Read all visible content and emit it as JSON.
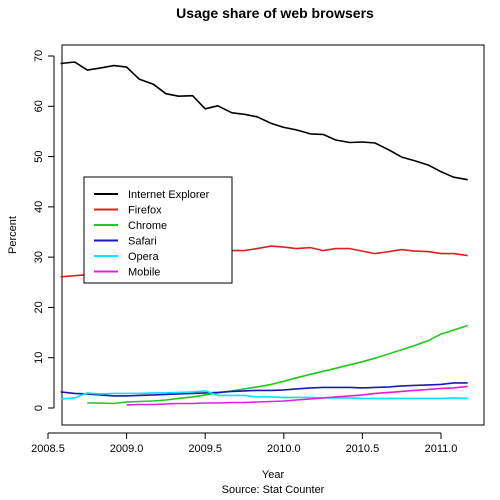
{
  "chart_data": {
    "type": "line",
    "title": "Usage share of web browsers",
    "xlabel": "Year",
    "caption": "Source: Stat Counter",
    "ylabel": "Percent",
    "xlim": [
      2008.5,
      2011.2
    ],
    "ylim": [
      0,
      72
    ],
    "x_ticks": [
      2008.5,
      2009.0,
      2009.5,
      2010.0,
      2010.5,
      2011.0
    ],
    "x_tick_labels": [
      "2008.5",
      "2009.0",
      "2009.5",
      "2010.0",
      "2010.5",
      "2011.0"
    ],
    "y_ticks": [
      0,
      10,
      20,
      30,
      40,
      50,
      60,
      70
    ],
    "y_tick_labels": [
      "0",
      "10",
      "20",
      "30",
      "40",
      "50",
      "60",
      "70"
    ],
    "legend_position": "left",
    "series": [
      {
        "name": "Internet Explorer",
        "color": "#000000",
        "x": [
          2008.58,
          2008.67,
          2008.75,
          2008.83,
          2008.92,
          2009.0,
          2009.08,
          2009.17,
          2009.25,
          2009.33,
          2009.42,
          2009.5,
          2009.58,
          2009.67,
          2009.75,
          2009.83,
          2009.92,
          2010.0,
          2010.08,
          2010.17,
          2010.25,
          2010.33,
          2010.42,
          2010.5,
          2010.58,
          2010.67,
          2010.75,
          2010.83,
          2010.92,
          2011.0,
          2011.08,
          2011.17
        ],
        "values": [
          68.5,
          68.8,
          67.2,
          67.6,
          68.1,
          67.8,
          65.4,
          64.4,
          62.5,
          62.0,
          62.1,
          59.5,
          60.1,
          58.7,
          58.4,
          57.9,
          56.6,
          55.8,
          55.3,
          54.5,
          54.4,
          53.3,
          52.8,
          52.9,
          52.7,
          51.3,
          49.9,
          49.2,
          48.3,
          47.0,
          45.9,
          45.4
        ]
      },
      {
        "name": "Firefox",
        "color": "#df2020",
        "x": [
          2008.58,
          2008.67,
          2008.75,
          2008.83,
          2008.92,
          2009.0,
          2009.08,
          2009.17,
          2009.25,
          2009.33,
          2009.42,
          2009.5,
          2009.58,
          2009.67,
          2009.75,
          2009.83,
          2009.92,
          2010.0,
          2010.08,
          2010.17,
          2010.25,
          2010.33,
          2010.42,
          2010.5,
          2010.58,
          2010.67,
          2010.75,
          2010.83,
          2010.92,
          2011.0,
          2011.08,
          2011.17
        ],
        "values": [
          26.1,
          26.3,
          26.5,
          27.0,
          27.6,
          28.0,
          28.5,
          29.0,
          29.3,
          29.7,
          30.0,
          30.2,
          30.5,
          31.3,
          31.3,
          31.7,
          32.2,
          32.0,
          31.7,
          31.9,
          31.3,
          31.7,
          31.7,
          31.2,
          30.7,
          31.1,
          31.5,
          31.2,
          31.1,
          30.7,
          30.7,
          30.3
        ]
      },
      {
        "name": "Chrome",
        "color": "#1ec81e",
        "x": [
          2008.75,
          2008.83,
          2008.92,
          2009.0,
          2009.08,
          2009.17,
          2009.25,
          2009.33,
          2009.42,
          2009.5,
          2009.58,
          2009.67,
          2009.75,
          2009.83,
          2009.92,
          2010.0,
          2010.08,
          2010.17,
          2010.25,
          2010.33,
          2010.42,
          2010.5,
          2010.58,
          2010.67,
          2010.75,
          2010.83,
          2010.92,
          2011.0,
          2011.08,
          2011.17
        ],
        "values": [
          1.0,
          1.0,
          0.9,
          1.2,
          1.3,
          1.4,
          1.6,
          1.9,
          2.2,
          2.6,
          3.0,
          3.4,
          3.8,
          4.2,
          4.7,
          5.3,
          6.0,
          6.7,
          7.3,
          7.9,
          8.6,
          9.2,
          9.9,
          10.8,
          11.6,
          12.4,
          13.4,
          14.7,
          15.5,
          16.4
        ]
      },
      {
        "name": "Safari",
        "color": "#1a1ab4",
        "x": [
          2008.58,
          2008.67,
          2008.75,
          2008.83,
          2008.92,
          2009.0,
          2009.08,
          2009.17,
          2009.25,
          2009.33,
          2009.42,
          2009.5,
          2009.58,
          2009.67,
          2009.75,
          2009.83,
          2009.92,
          2010.0,
          2010.08,
          2010.17,
          2010.25,
          2010.33,
          2010.42,
          2010.5,
          2010.58,
          2010.67,
          2010.75,
          2010.83,
          2010.92,
          2011.0,
          2011.08,
          2011.17
        ],
        "values": [
          3.2,
          2.9,
          2.8,
          2.6,
          2.4,
          2.4,
          2.5,
          2.6,
          2.7,
          2.8,
          2.9,
          3.0,
          3.1,
          3.3,
          3.4,
          3.5,
          3.5,
          3.6,
          3.8,
          4.0,
          4.1,
          4.1,
          4.1,
          4.0,
          4.1,
          4.2,
          4.4,
          4.5,
          4.6,
          4.7,
          5.0,
          5.0
        ]
      },
      {
        "name": "Opera",
        "color": "#00e5ff",
        "x": [
          2008.58,
          2008.67,
          2008.75,
          2008.83,
          2008.92,
          2009.0,
          2009.08,
          2009.17,
          2009.25,
          2009.33,
          2009.42,
          2009.5,
          2009.58,
          2009.67,
          2009.75,
          2009.83,
          2009.92,
          2010.0,
          2010.08,
          2010.17,
          2010.25,
          2010.33,
          2010.42,
          2010.5,
          2010.58,
          2010.67,
          2010.75,
          2010.83,
          2010.92,
          2011.0,
          2011.08,
          2011.17
        ],
        "values": [
          1.8,
          2.0,
          3.0,
          2.8,
          2.9,
          2.9,
          2.9,
          3.0,
          3.0,
          3.1,
          3.2,
          3.4,
          2.5,
          2.5,
          2.5,
          2.2,
          2.2,
          2.1,
          2.1,
          2.1,
          2.0,
          2.0,
          2.0,
          1.9,
          1.9,
          1.9,
          1.9,
          1.9,
          1.9,
          1.9,
          2.0,
          1.9
        ]
      },
      {
        "name": "Mobile",
        "color": "#e020e0",
        "x": [
          2009.0,
          2009.08,
          2009.17,
          2009.25,
          2009.33,
          2009.42,
          2009.5,
          2009.58,
          2009.67,
          2009.75,
          2009.83,
          2009.92,
          2010.0,
          2010.08,
          2010.17,
          2010.25,
          2010.33,
          2010.42,
          2010.5,
          2010.58,
          2010.67,
          2010.75,
          2010.83,
          2010.92,
          2011.0,
          2011.08,
          2011.17
        ],
        "values": [
          0.6,
          0.7,
          0.7,
          0.8,
          0.9,
          0.9,
          1.0,
          1.0,
          1.1,
          1.1,
          1.2,
          1.3,
          1.4,
          1.6,
          1.8,
          2.0,
          2.2,
          2.4,
          2.6,
          2.9,
          3.1,
          3.3,
          3.5,
          3.7,
          3.9,
          4.0,
          4.3
        ]
      }
    ]
  }
}
